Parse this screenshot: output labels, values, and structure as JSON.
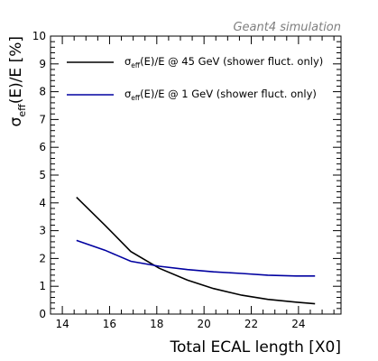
{
  "chart_data": {
    "type": "line",
    "annotation": "Geant4 simulation",
    "xlabel": "Total ECAL length [X0]",
    "ylabel": {
      "main": "σ",
      "sub": "eff",
      "rest": "(E)/E [%]"
    },
    "xlim": [
      13.5,
      25.8
    ],
    "ylim": [
      0,
      10
    ],
    "x_ticks": [
      14,
      16,
      18,
      20,
      22,
      24
    ],
    "y_ticks": [
      0,
      1,
      2,
      3,
      4,
      5,
      6,
      7,
      8,
      9,
      10
    ],
    "grid": false,
    "legend_position": "top",
    "series": [
      {
        "name": "σ_eff(E)/E @ 45 GeV (shower fluct. only)",
        "label_main": "σ",
        "label_sub": "eff",
        "label_rest": "(E)/E @ 45 GeV (shower fluct. only)",
        "color": "#000000",
        "x": [
          14.6,
          15.8,
          16.9,
          18.1,
          19.3,
          20.4,
          21.6,
          22.7,
          23.9,
          24.7
        ],
        "y": [
          4.2,
          3.2,
          2.25,
          1.65,
          1.22,
          0.92,
          0.68,
          0.53,
          0.43,
          0.37
        ]
      },
      {
        "name": "σ_eff(E)/E @ 1 GeV (shower fluct. only)",
        "label_main": "σ",
        "label_sub": "eff",
        "label_rest": "(E)/E @ 1 GeV (shower fluct. only)",
        "color": "#0000a0",
        "x": [
          14.6,
          15.8,
          16.9,
          18.1,
          19.3,
          20.4,
          21.6,
          22.7,
          23.9,
          24.7
        ],
        "y": [
          2.65,
          2.3,
          1.9,
          1.72,
          1.6,
          1.52,
          1.46,
          1.4,
          1.37,
          1.37
        ]
      }
    ]
  }
}
